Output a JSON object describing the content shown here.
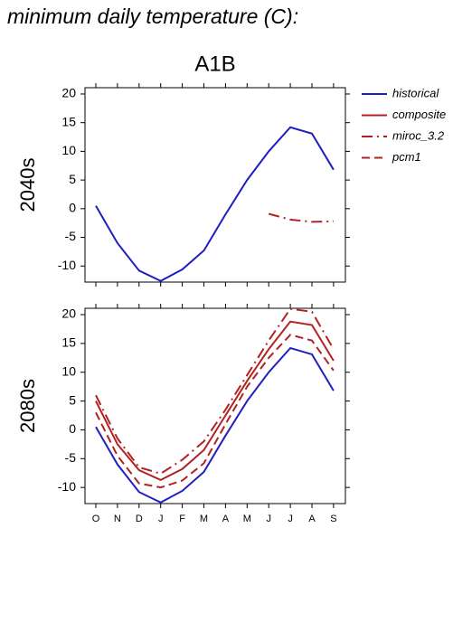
{
  "chart_data": [
    {
      "type": "line",
      "title": "minimum daily temperature (C):",
      "subtitle": "A1B",
      "ylabel": "2040s",
      "categories": [
        "O",
        "N",
        "D",
        "J",
        "F",
        "M",
        "A",
        "M",
        "J",
        "J",
        "A",
        "S"
      ],
      "ylim": [
        -12.8,
        21.1
      ],
      "yticks": [
        -10,
        -5,
        0,
        5,
        10,
        15,
        20
      ],
      "series": [
        {
          "name": "historical",
          "color": "#1f1fbf",
          "dash": "solid",
          "values": [
            0.5,
            -6,
            -10.8,
            -12.6,
            -10.6,
            -7.3,
            -1,
            5,
            10,
            14.2,
            13.1,
            6.8
          ]
        },
        {
          "name": "miroc_3.2",
          "color": "#b22222",
          "dash": "dashdot",
          "values": [
            null,
            null,
            null,
            null,
            null,
            null,
            null,
            null,
            -0.9,
            -1.9,
            -2.3,
            -2.2
          ]
        }
      ]
    },
    {
      "type": "line",
      "ylabel": "2080s",
      "categories": [
        "O",
        "N",
        "D",
        "J",
        "F",
        "M",
        "A",
        "M",
        "J",
        "J",
        "A",
        "S"
      ],
      "ylim": [
        -12.8,
        21.1
      ],
      "yticks": [
        -10,
        -5,
        0,
        5,
        10,
        15,
        20
      ],
      "series": [
        {
          "name": "historical",
          "color": "#1f1fbf",
          "dash": "solid",
          "values": [
            0.5,
            -6,
            -10.8,
            -12.6,
            -10.6,
            -7.3,
            -1,
            5,
            10,
            14.2,
            13.1,
            6.8
          ]
        },
        {
          "name": "composite",
          "color": "#b22222",
          "dash": "solid",
          "values": [
            5,
            -2.5,
            -7,
            -8.7,
            -6.8,
            -3.5,
            2.5,
            8.5,
            14,
            18.8,
            18.2,
            12
          ]
        },
        {
          "name": "miroc_3.2",
          "color": "#b22222",
          "dash": "dashdot",
          "values": [
            6,
            -1.5,
            -6.5,
            -7.6,
            -5.2,
            -2,
            3.5,
            9.5,
            15.5,
            21,
            20.5,
            14
          ]
        },
        {
          "name": "pcm1",
          "color": "#b22222",
          "dash": "dashed",
          "values": [
            3,
            -4.5,
            -9.3,
            -10,
            -8.8,
            -5.8,
            1,
            7.5,
            12.5,
            16.5,
            15.5,
            10.3
          ]
        }
      ]
    }
  ]
}
